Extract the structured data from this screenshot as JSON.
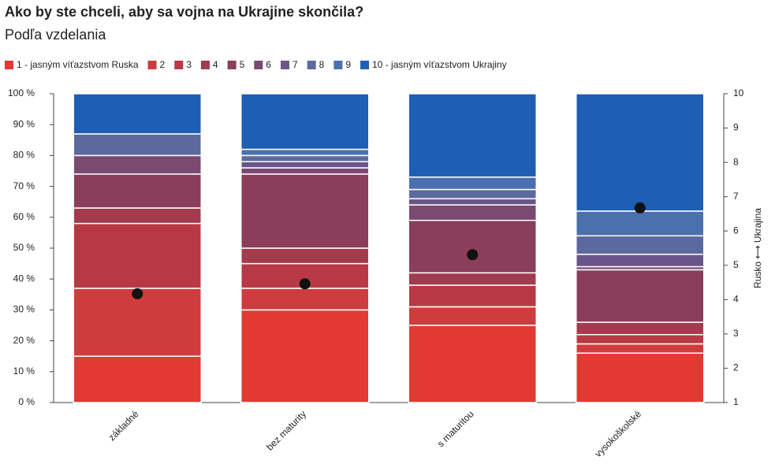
{
  "chart_data": {
    "type": "stacked-bar",
    "title": "Ako by ste chceli, aby sa vojna na Ukrajine skončila?",
    "subtitle": "Podľa vzdelania",
    "categories": [
      "základné",
      "bez maturity",
      "s maturitou",
      "vysokoškolské"
    ],
    "series": [
      {
        "name": "1 - jasným víťazstvom Ruska",
        "color": "#e03a33",
        "values": [
          15,
          30,
          25,
          16
        ]
      },
      {
        "name": "2",
        "color": "#cf3c3e",
        "values": [
          22,
          7,
          6,
          3
        ]
      },
      {
        "name": "3",
        "color": "#b83945",
        "values": [
          21,
          8,
          7,
          3
        ]
      },
      {
        "name": "4",
        "color": "#a23b4c",
        "values": [
          5,
          5,
          4,
          4
        ]
      },
      {
        "name": "5",
        "color": "#8b3e5a",
        "values": [
          11,
          24,
          17,
          17
        ]
      },
      {
        "name": "6",
        "color": "#7a4a72",
        "values": [
          6,
          2,
          5,
          1
        ]
      },
      {
        "name": "7",
        "color": "#6a5588",
        "values": [
          0,
          2,
          2,
          4
        ]
      },
      {
        "name": "8",
        "color": "#5b6a9e",
        "values": [
          7,
          2,
          3,
          6
        ]
      },
      {
        "name": "9",
        "color": "#4a70b0",
        "values": [
          0,
          2,
          4,
          8
        ]
      },
      {
        "name": "10 - jasným víťazstvom Ukrajiny",
        "color": "#1f5fb3",
        "values": [
          13,
          18,
          27,
          38
        ]
      }
    ],
    "markers": {
      "values": [
        4.17,
        4.46,
        5.31,
        6.67
      ],
      "axis": "y2",
      "color": "#111111"
    },
    "ylim": [
      0,
      100
    ],
    "yticks": [
      {
        "value": 0,
        "label": "0 %"
      },
      {
        "value": 10,
        "label": "10 %"
      },
      {
        "value": 20,
        "label": "20 %"
      },
      {
        "value": 30,
        "label": "30 %"
      },
      {
        "value": 40,
        "label": "40 %"
      },
      {
        "value": 50,
        "label": "50 %"
      },
      {
        "value": 60,
        "label": "60 %"
      },
      {
        "value": 70,
        "label": "70 %"
      },
      {
        "value": 80,
        "label": "80 %"
      },
      {
        "value": 90,
        "label": "90 %"
      },
      {
        "value": 100,
        "label": "100 %"
      }
    ],
    "y2lim": [
      1,
      10
    ],
    "y2ticks": [
      1,
      2,
      3,
      4,
      5,
      6,
      7,
      8,
      9,
      10
    ],
    "y2label": "Rusko ⟷ Ukrajina",
    "legend": "top-left"
  }
}
